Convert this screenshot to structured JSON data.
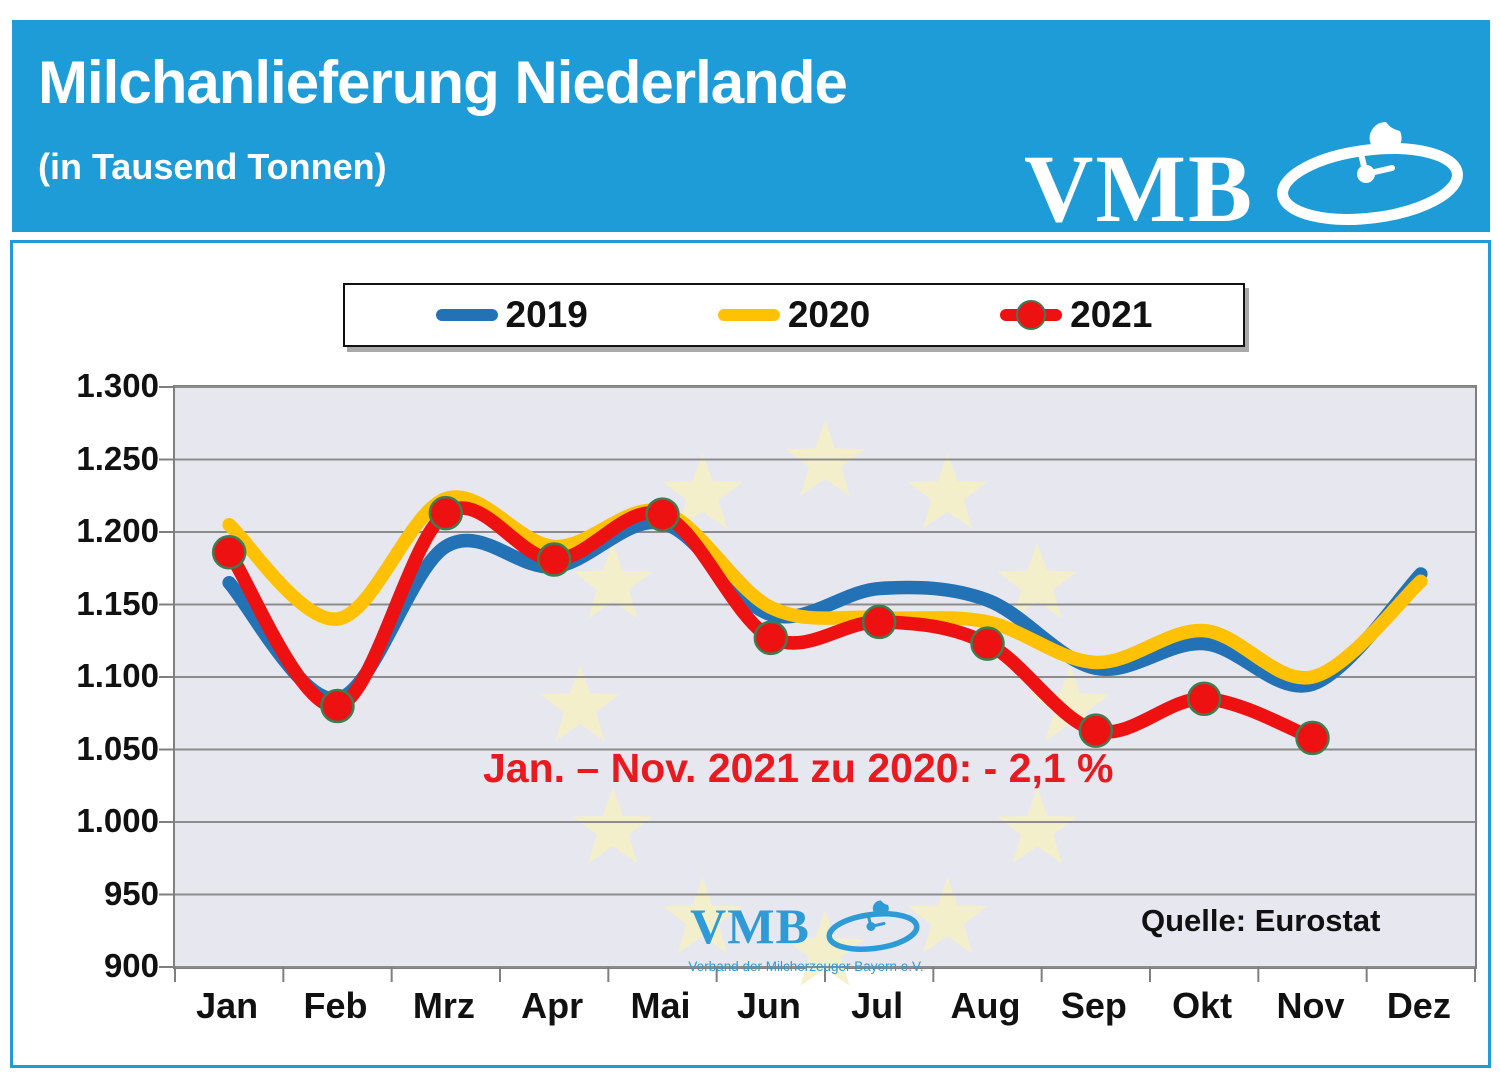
{
  "theme": {
    "accent_blue": "#1E9CD7",
    "plot_bg": "#E7E7F0",
    "grid_color": "#8C8C8C",
    "tick_color": "#7f7f7f",
    "star_color": "#F5EFC7",
    "annotation_red": "#E8191F",
    "marker_ring": "#3c7d52"
  },
  "header": {
    "title": "Milchanlieferung Niederlande",
    "subtitle": "(in Tausend Tonnen)",
    "logo_text": "VMB"
  },
  "legend": {
    "items": [
      {
        "label": "2019",
        "color": "#2272B5",
        "marker": false
      },
      {
        "label": "2020",
        "color": "#FFC104",
        "marker": false
      },
      {
        "label": "2021",
        "color": "#EE1111",
        "marker": true
      }
    ]
  },
  "annotation": {
    "text": "Jan. – Nov. 2021 zu 2020: - 2,1 %"
  },
  "watermark": {
    "logo_text": "VMB",
    "subtext": "Verband der Milcherzeuger Bayern e.V."
  },
  "source": {
    "text": "Quelle: Eurostat"
  },
  "chart_data": {
    "type": "line",
    "title": "Milchanlieferung Niederlande (in Tausend Tonnen)",
    "categories": [
      "Jan",
      "Feb",
      "Mrz",
      "Apr",
      "Mai",
      "Jun",
      "Jul",
      "Aug",
      "Sep",
      "Okt",
      "Nov",
      "Dez"
    ],
    "series": [
      {
        "name": "2019",
        "color": "#2272B5",
        "marker": false,
        "values": [
          1165,
          1085,
          1190,
          1176,
          1206,
          1143,
          1161,
          1153,
          1106,
          1123,
          1095,
          1171
        ]
      },
      {
        "name": "2020",
        "color": "#FFC104",
        "marker": false,
        "values": [
          1205,
          1140,
          1223,
          1190,
          1214,
          1148,
          1141,
          1138,
          1110,
          1132,
          1100,
          1166
        ]
      },
      {
        "name": "2021",
        "color": "#EE1111",
        "marker": true,
        "values": [
          1186,
          1080,
          1213,
          1181,
          1212,
          1127,
          1138,
          1123,
          1063,
          1085,
          1058
        ]
      }
    ],
    "xlabel": "",
    "ylabel": "",
    "ylim": [
      900,
      1300
    ],
    "ytick_step": 50,
    "ytick_labels": [
      "1.300",
      "1.250",
      "1.200",
      "1.150",
      "1.100",
      "1.050",
      "1.000",
      "950",
      "900"
    ],
    "grid": true,
    "legend_position": "top",
    "background_watermark": "EU flag circle of 12 pale yellow stars"
  }
}
